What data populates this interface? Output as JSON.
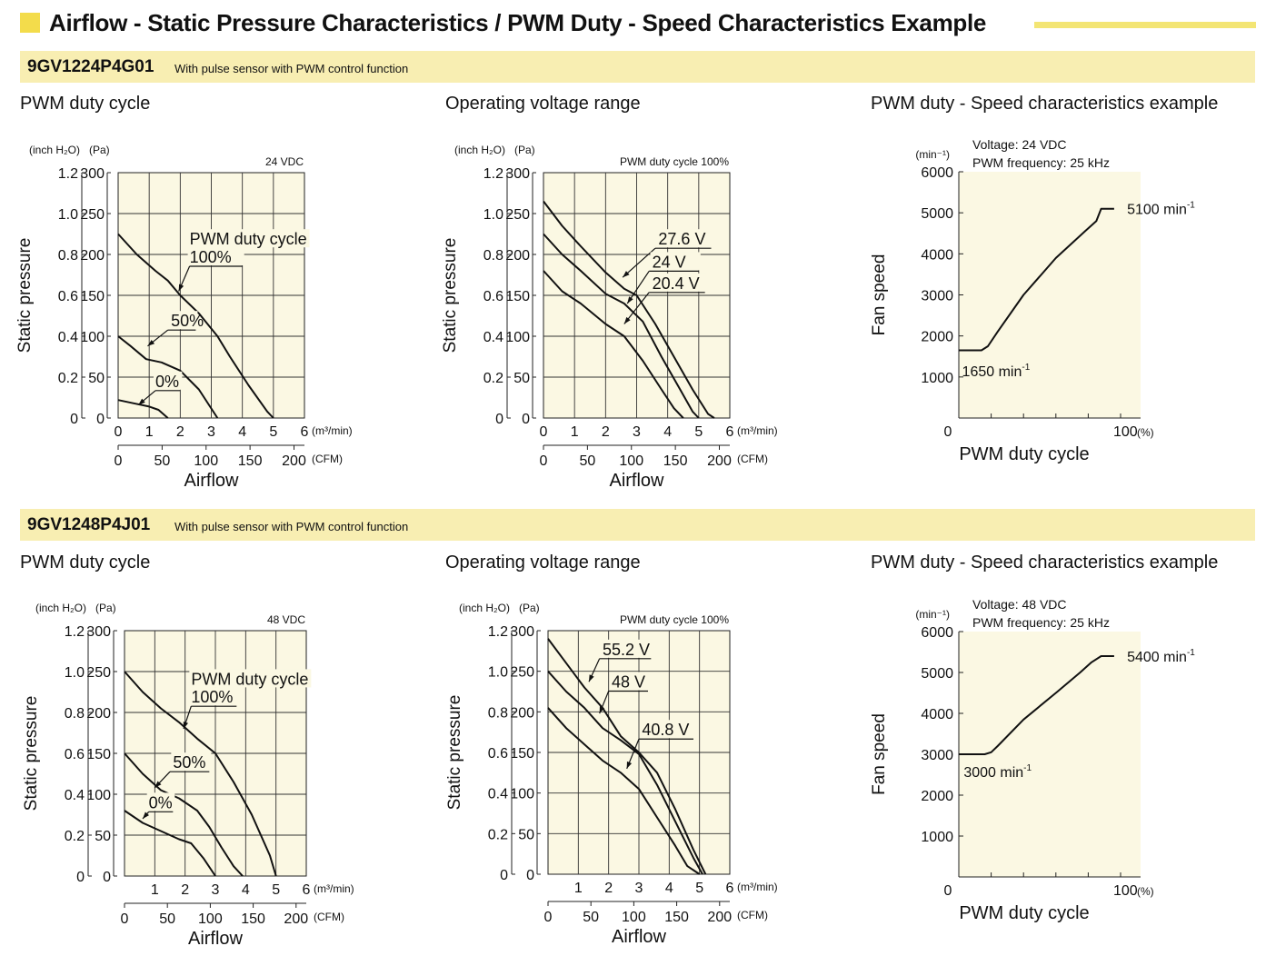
{
  "header": {
    "title": "Airflow - Static Pressure Characteristics / PWM Duty - Speed Characteristics Example"
  },
  "colors": {
    "accent": "#f3dc4b",
    "band": "#f8eeb2",
    "plot_bg": "#fbf8e3"
  },
  "sections": [
    {
      "model": "9GV1224P4G01",
      "description": "With pulse sensor with PWM control function",
      "titles": [
        "PWM duty cycle",
        "Operating voltage range",
        "PWM duty - Speed characteristics example"
      ]
    },
    {
      "model": "9GV1248P4J01",
      "description": "With pulse sensor with PWM control function",
      "titles": [
        "PWM duty cycle",
        "Operating voltage range",
        "PWM duty - Speed characteristics example"
      ]
    }
  ],
  "chart_data": [
    {
      "type": "line",
      "model": "9GV1224P4G01",
      "note": "24 VDC",
      "xlabel": "Airflow",
      "ylabel": "Static pressure",
      "x_unit": "(m³/min)",
      "x2_unit": "(CFM)",
      "y_unit": "(Pa)",
      "y2_unit": "(inch H₂O)",
      "xlim": [
        0,
        6
      ],
      "ylim": [
        0,
        300
      ],
      "x_ticks": [
        0,
        1,
        2,
        3,
        4,
        5,
        6
      ],
      "x2_ticks": [
        0,
        50,
        100,
        150,
        200
      ],
      "y_ticks": [
        0,
        50,
        100,
        150,
        200,
        250,
        300
      ],
      "y2_ticks": [
        "0",
        "0.2",
        "0.4",
        "0.6",
        "0.8",
        "1.0",
        "1.2"
      ],
      "series": [
        {
          "name": "100%",
          "x": [
            0,
            0.6,
            1.2,
            1.6,
            2.0,
            2.6,
            3.2,
            3.6,
            4.2,
            4.8,
            5.0
          ],
          "y": [
            225,
            200,
            180,
            168,
            150,
            128,
            100,
            75,
            40,
            8,
            0
          ]
        },
        {
          "name": "50%",
          "x": [
            0,
            0.4,
            0.9,
            1.4,
            2.0,
            2.6,
            3.2
          ],
          "y": [
            100,
            88,
            72,
            68,
            58,
            35,
            0
          ]
        },
        {
          "name": "0%",
          "x": [
            0,
            0.5,
            1.0,
            1.3,
            1.6
          ],
          "y": [
            22,
            18,
            14,
            10,
            0
          ]
        }
      ],
      "legend_title": "PWM duty cycle",
      "annotations": [
        {
          "text": "PWM duty cycle",
          "x": 2.3,
          "y": 212
        },
        {
          "text": "100%",
          "x": 2.3,
          "y": 190,
          "underline": [
            2.3,
            4.0
          ],
          "target": [
            1.95,
            155
          ]
        },
        {
          "text": "50%",
          "x": 1.7,
          "y": 112,
          "underline": [
            1.6,
            2.5
          ],
          "target": [
            0.95,
            88
          ]
        },
        {
          "text": "0%",
          "x": 1.2,
          "y": 38,
          "underline": [
            1.2,
            2.0
          ],
          "target": [
            0.65,
            16
          ]
        }
      ]
    },
    {
      "type": "line",
      "model": "9GV1224P4G01",
      "note": "PWM duty cycle 100%",
      "xlabel": "Airflow",
      "ylabel": "Static pressure",
      "x_unit": "(m³/min)",
      "x2_unit": "(CFM)",
      "y_unit": "(Pa)",
      "y2_unit": "(inch H₂O)",
      "xlim": [
        0,
        6
      ],
      "ylim": [
        0,
        300
      ],
      "x_ticks": [
        0,
        1,
        2,
        3,
        4,
        5,
        6
      ],
      "x2_ticks": [
        0,
        50,
        100,
        150,
        200
      ],
      "y_ticks": [
        0,
        50,
        100,
        150,
        200,
        250,
        300
      ],
      "y2_ticks": [
        "0",
        "0.2",
        "0.4",
        "0.6",
        "0.8",
        "1.0",
        "1.2"
      ],
      "series": [
        {
          "name": "27.6 V",
          "x": [
            0,
            0.6,
            1.2,
            2.0,
            2.6,
            3.0,
            3.6,
            4.2,
            4.8,
            5.3,
            5.5
          ],
          "y": [
            265,
            235,
            210,
            178,
            158,
            150,
            115,
            75,
            35,
            5,
            0
          ]
        },
        {
          "name": "24 V",
          "x": [
            0,
            0.6,
            1.2,
            2.0,
            2.6,
            3.2,
            3.8,
            4.4,
            4.8,
            5.0
          ],
          "y": [
            225,
            200,
            180,
            152,
            140,
            118,
            75,
            35,
            8,
            0
          ]
        },
        {
          "name": "20.4 V",
          "x": [
            0,
            0.6,
            1.2,
            2.0,
            2.6,
            3.2,
            3.8,
            4.2,
            4.5
          ],
          "y": [
            180,
            155,
            140,
            115,
            100,
            70,
            35,
            12,
            0
          ]
        }
      ],
      "annotations": [
        {
          "text": "27.6 V",
          "x": 3.7,
          "y": 212,
          "underline": [
            3.6,
            5.4
          ],
          "target": [
            2.55,
            172
          ]
        },
        {
          "text": "24 V",
          "x": 3.5,
          "y": 184,
          "underline": [
            3.4,
            5.0
          ],
          "target": [
            2.7,
            140
          ]
        },
        {
          "text": "20.4 V",
          "x": 3.5,
          "y": 158,
          "underline": [
            3.4,
            5.2
          ],
          "target": [
            2.6,
            115
          ]
        }
      ]
    },
    {
      "type": "line",
      "model": "9GV1224P4G01",
      "note_lines": [
        "Voltage: 24 VDC",
        "PWM frequency: 25 kHz"
      ],
      "xlabel": "PWM duty cycle",
      "ylabel": "Fan speed",
      "x_unit": "(%)",
      "y_unit": "(min⁻¹)",
      "xlim": [
        0,
        100
      ],
      "ylim": [
        0,
        6000
      ],
      "x_tick_labels": [
        {
          "v": 0,
          "t": "0"
        },
        {
          "v": 100,
          "t": "100"
        }
      ],
      "x_minor_ticks": [
        20,
        40,
        60,
        80
      ],
      "y_ticks": [
        1000,
        2000,
        3000,
        4000,
        5000,
        6000
      ],
      "series": [
        {
          "name": "Speed",
          "x": [
            0,
            14,
            18,
            24,
            40,
            60,
            78,
            85,
            88,
            90,
            96
          ],
          "y": [
            1650,
            1650,
            1750,
            2100,
            3000,
            3900,
            4550,
            4800,
            5100,
            5100,
            5100
          ]
        }
      ],
      "annotations": [
        {
          "text": "1650 min",
          "sup": "-1",
          "x": 2,
          "y": 1150
        },
        {
          "text": "5100 min",
          "sup": "-1",
          "x": 104,
          "y": 5100
        }
      ]
    },
    {
      "type": "line",
      "model": "9GV1248P4J01",
      "note": "48 VDC",
      "xlabel": "Airflow",
      "ylabel": "Static pressure",
      "x_unit": "(m³/min)",
      "x2_unit": "(CFM)",
      "y_unit": "(Pa)",
      "y2_unit": "(inch H₂O)",
      "xlim": [
        0,
        6
      ],
      "ylim": [
        0,
        300
      ],
      "x_ticks": [
        1,
        2,
        3,
        4,
        5,
        6
      ],
      "x2_ticks": [
        0,
        50,
        100,
        150,
        200
      ],
      "y_ticks": [
        0,
        50,
        100,
        150,
        200,
        250,
        300
      ],
      "y2_ticks": [
        "0",
        "0.2",
        "0.4",
        "0.6",
        "0.8",
        "1.0",
        "1.2"
      ],
      "series": [
        {
          "name": "100%",
          "x": [
            0,
            0.6,
            1.2,
            1.8,
            2.4,
            3.0,
            3.6,
            4.2,
            4.8,
            5.0
          ],
          "y": [
            250,
            225,
            205,
            188,
            168,
            150,
            115,
            75,
            25,
            0
          ]
        },
        {
          "name": "50%",
          "x": [
            0,
            0.6,
            1.2,
            1.8,
            2.4,
            2.8,
            3.2,
            3.6,
            3.9
          ],
          "y": [
            150,
            125,
            105,
            95,
            80,
            60,
            35,
            12,
            0
          ]
        },
        {
          "name": "0%",
          "x": [
            0,
            0.6,
            1.2,
            1.8,
            2.2,
            2.6,
            3.0
          ],
          "y": [
            80,
            65,
            55,
            45,
            40,
            22,
            0
          ]
        }
      ],
      "legend_title": "PWM duty cycle",
      "annotations": [
        {
          "text": "PWM duty cycle",
          "x": 2.2,
          "y": 234
        },
        {
          "text": "100%",
          "x": 2.2,
          "y": 212,
          "underline": [
            2.2,
            3.7
          ],
          "target": [
            1.95,
            180
          ]
        },
        {
          "text": "50%",
          "x": 1.6,
          "y": 132,
          "underline": [
            1.5,
            2.8
          ],
          "target": [
            1.0,
            108
          ]
        },
        {
          "text": "0%",
          "x": 0.8,
          "y": 83,
          "underline": [
            0.8,
            1.6
          ],
          "target": [
            0.6,
            70
          ]
        }
      ]
    },
    {
      "type": "line",
      "model": "9GV1248P4J01",
      "note": "PWM duty cycle 100%",
      "xlabel": "Airflow",
      "ylabel": "Static pressure",
      "x_unit": "(m³/min)",
      "x2_unit": "(CFM)",
      "y_unit": "(Pa)",
      "y2_unit": "(inch H₂O)",
      "xlim": [
        0,
        6
      ],
      "ylim": [
        0,
        300
      ],
      "x_ticks": [
        1,
        2,
        3,
        4,
        5,
        6
      ],
      "x2_ticks": [
        0,
        50,
        100,
        150,
        200
      ],
      "y_ticks": [
        0,
        50,
        100,
        150,
        200,
        250,
        300
      ],
      "y2_ticks": [
        "0",
        "0.2",
        "0.4",
        "0.6",
        "0.8",
        "1.0",
        "1.2"
      ],
      "series": [
        {
          "name": "55.2 V",
          "x": [
            0,
            0.6,
            1.2,
            1.8,
            2.4,
            3.0,
            3.6,
            4.2,
            4.8,
            5.2
          ],
          "y": [
            290,
            260,
            230,
            205,
            170,
            150,
            125,
            80,
            30,
            0
          ]
        },
        {
          "name": "48 V",
          "x": [
            0,
            0.6,
            1.2,
            1.8,
            2.4,
            3.0,
            3.6,
            4.2,
            4.8,
            5.1
          ],
          "y": [
            250,
            225,
            205,
            180,
            165,
            148,
            110,
            65,
            20,
            0
          ]
        },
        {
          "name": "40.8 V",
          "x": [
            0,
            0.6,
            1.2,
            1.8,
            2.4,
            3.0,
            3.6,
            4.2,
            4.6,
            5.0
          ],
          "y": [
            205,
            180,
            160,
            140,
            125,
            105,
            70,
            35,
            10,
            0
          ]
        }
      ],
      "annotations": [
        {
          "text": "55.2 V",
          "x": 1.8,
          "y": 270,
          "underline": [
            1.7,
            3.4
          ],
          "target": [
            1.35,
            237
          ]
        },
        {
          "text": "48 V",
          "x": 2.1,
          "y": 230,
          "underline": [
            2.0,
            3.3
          ],
          "target": [
            1.7,
            198
          ]
        },
        {
          "text": "40.8 V",
          "x": 3.1,
          "y": 171,
          "underline": [
            3.0,
            4.8
          ],
          "target": [
            2.6,
            130
          ]
        }
      ]
    },
    {
      "type": "line",
      "model": "9GV1248P4J01",
      "note_lines": [
        "Voltage: 48 VDC",
        "PWM frequency: 25 kHz"
      ],
      "xlabel": "PWM duty cycle",
      "ylabel": "Fan speed",
      "x_unit": "(%)",
      "y_unit": "(min⁻¹)",
      "xlim": [
        0,
        100
      ],
      "ylim": [
        0,
        6000
      ],
      "x_tick_labels": [
        {
          "v": 0,
          "t": "0"
        },
        {
          "v": 100,
          "t": "100"
        }
      ],
      "x_minor_ticks": [
        20,
        40,
        60,
        80
      ],
      "y_ticks": [
        1000,
        2000,
        3000,
        4000,
        5000,
        6000
      ],
      "series": [
        {
          "name": "Speed",
          "x": [
            0,
            16,
            20,
            24,
            40,
            60,
            75,
            82,
            88,
            90,
            96
          ],
          "y": [
            3000,
            3000,
            3050,
            3200,
            3850,
            4500,
            5000,
            5250,
            5400,
            5400,
            5400
          ]
        }
      ],
      "annotations": [
        {
          "text": "3000 min",
          "sup": "-1",
          "x": 3,
          "y": 2580
        },
        {
          "text": "5400 min",
          "sup": "-1",
          "x": 104,
          "y": 5400
        }
      ]
    }
  ]
}
